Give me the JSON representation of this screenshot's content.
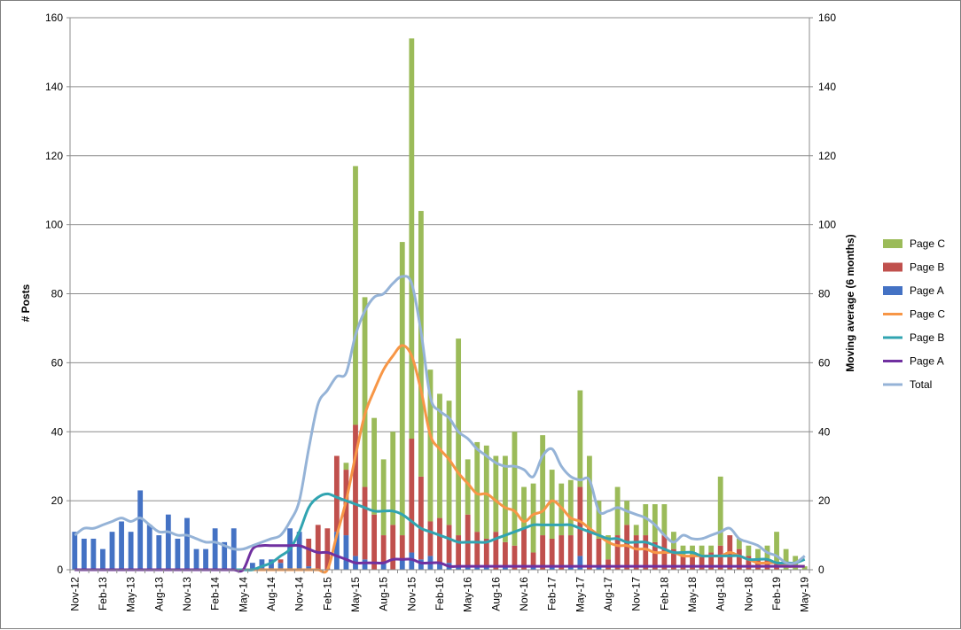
{
  "chart_data": {
    "type": "bar",
    "y_left_label": "# Posts",
    "y_right_label": "Moving average (6 months)",
    "ylim": [
      0,
      160
    ],
    "y_ticks": [
      0,
      20,
      40,
      60,
      80,
      100,
      120,
      140,
      160
    ],
    "x_tick_labels": [
      "Nov-12",
      "Feb-13",
      "May-13",
      "Aug-13",
      "Nov-13",
      "Feb-14",
      "May-14",
      "Aug-14",
      "Nov-14",
      "Feb-15",
      "May-15",
      "Aug-15",
      "Nov-15",
      "Feb-16",
      "May-16",
      "Aug-16",
      "Nov-16",
      "Feb-17",
      "May-17",
      "Aug-17",
      "Nov-17",
      "Feb-18",
      "May-18",
      "Aug-18",
      "Nov-18",
      "Feb-19",
      "May-19"
    ],
    "months": [
      "Nov-12",
      "Dec-12",
      "Jan-13",
      "Feb-13",
      "Mar-13",
      "Apr-13",
      "May-13",
      "Jun-13",
      "Jul-13",
      "Aug-13",
      "Sep-13",
      "Oct-13",
      "Nov-13",
      "Dec-13",
      "Jan-14",
      "Feb-14",
      "Mar-14",
      "Apr-14",
      "May-14",
      "Jun-14",
      "Jul-14",
      "Aug-14",
      "Sep-14",
      "Oct-14",
      "Nov-14",
      "Dec-14",
      "Jan-15",
      "Feb-15",
      "Mar-15",
      "Apr-15",
      "May-15",
      "Jun-15",
      "Jul-15",
      "Aug-15",
      "Sep-15",
      "Oct-15",
      "Nov-15",
      "Dec-15",
      "Jan-16",
      "Feb-16",
      "Mar-16",
      "Apr-16",
      "May-16",
      "Jun-16",
      "Jul-16",
      "Aug-16",
      "Sep-16",
      "Oct-16",
      "Nov-16",
      "Dec-16",
      "Jan-17",
      "Feb-17",
      "Mar-17",
      "Apr-17",
      "May-17",
      "Jun-17",
      "Jul-17",
      "Aug-17",
      "Sep-17",
      "Oct-17",
      "Nov-17",
      "Dec-17",
      "Jan-18",
      "Feb-18",
      "Mar-18",
      "Apr-18",
      "May-18",
      "Jun-18",
      "Jul-18",
      "Aug-18",
      "Sep-18",
      "Oct-18",
      "Nov-18",
      "Dec-18",
      "Jan-19",
      "Feb-19",
      "Mar-19",
      "Apr-19",
      "May-19"
    ],
    "bar_series": [
      {
        "name": "Page A",
        "color": "#4472c4",
        "values": [
          11,
          9,
          9,
          6,
          11,
          14,
          11,
          23,
          13,
          10,
          16,
          9,
          15,
          6,
          6,
          12,
          8,
          12,
          0,
          2,
          3,
          3,
          2,
          12,
          11,
          1,
          0,
          0,
          11,
          10,
          4,
          3,
          0,
          2,
          0,
          3,
          5,
          3,
          4,
          2,
          2,
          1,
          1,
          1,
          1,
          0,
          1,
          0,
          0,
          1,
          0,
          1,
          0,
          1,
          4,
          0,
          1,
          0,
          0,
          0,
          0,
          0,
          0,
          0,
          0,
          0,
          0,
          0,
          0,
          0,
          0,
          0,
          0,
          0,
          0,
          0,
          0,
          0,
          0
        ]
      },
      {
        "name": "Page B",
        "color": "#c0504d",
        "values": [
          0,
          0,
          0,
          0,
          0,
          0,
          0,
          0,
          0,
          0,
          0,
          0,
          0,
          0,
          0,
          0,
          0,
          0,
          0,
          0,
          0,
          0,
          1,
          0,
          0,
          8,
          13,
          12,
          22,
          19,
          38,
          21,
          16,
          8,
          13,
          7,
          33,
          24,
          10,
          13,
          11,
          9,
          15,
          10,
          8,
          11,
          7,
          7,
          12,
          4,
          10,
          8,
          10,
          9,
          20,
          12,
          8,
          3,
          10,
          13,
          10,
          10,
          8,
          10,
          6,
          4,
          4,
          4,
          5,
          7,
          10,
          6,
          4,
          3,
          3,
          2,
          0,
          0,
          0
        ]
      },
      {
        "name": "Page C",
        "color": "#9bbb59",
        "values": [
          0,
          0,
          0,
          0,
          0,
          0,
          0,
          0,
          0,
          0,
          0,
          0,
          0,
          0,
          0,
          0,
          0,
          0,
          0,
          0,
          0,
          0,
          0,
          0,
          0,
          0,
          0,
          0,
          0,
          2,
          75,
          55,
          28,
          22,
          27,
          85,
          116,
          77,
          44,
          36,
          36,
          57,
          16,
          26,
          27,
          22,
          25,
          33,
          12,
          20,
          29,
          20,
          15,
          16,
          28,
          21,
          11,
          7,
          14,
          7,
          3,
          9,
          11,
          9,
          5,
          3,
          3,
          3,
          2,
          20,
          0,
          3,
          3,
          3,
          4,
          9,
          6,
          4,
          1
        ]
      }
    ],
    "line_series": [
      {
        "name": "Page C",
        "color": "#f79646",
        "values": [
          0,
          0,
          0,
          0,
          0,
          0,
          0,
          0,
          0,
          0,
          0,
          0,
          0,
          0,
          0,
          0,
          0,
          0,
          0,
          0,
          0,
          0,
          0,
          0,
          0,
          0,
          0,
          0,
          10,
          20,
          33,
          45,
          52,
          58,
          62,
          65,
          62,
          52,
          39,
          35,
          32,
          28,
          25,
          22,
          22,
          20,
          18,
          17,
          14,
          16,
          17,
          20,
          18,
          15,
          14,
          12,
          10,
          8,
          7,
          7,
          6,
          6,
          5,
          5,
          5,
          4,
          4,
          4,
          4,
          4,
          5,
          4,
          3,
          2,
          2,
          2,
          1,
          1,
          1
        ]
      },
      {
        "name": "Page B",
        "color": "#31a4b1",
        "values": [
          0,
          0,
          0,
          0,
          0,
          0,
          0,
          0,
          0,
          0,
          0,
          0,
          0,
          0,
          0,
          0,
          0,
          0,
          0,
          0,
          1,
          2,
          4,
          6,
          11,
          18,
          21,
          22,
          21,
          20,
          19,
          18,
          17,
          17,
          17,
          16,
          14,
          12,
          11,
          10,
          9,
          8,
          8,
          8,
          8,
          9,
          10,
          11,
          12,
          13,
          13,
          13,
          13,
          13,
          12,
          11,
          10,
          9,
          9,
          8,
          8,
          8,
          7,
          6,
          5,
          5,
          5,
          4,
          4,
          4,
          4,
          4,
          3,
          3,
          3,
          2,
          2,
          2,
          3
        ]
      },
      {
        "name": "Page A",
        "color": "#7030a0",
        "values": [
          0,
          0,
          0,
          0,
          0,
          0,
          0,
          0,
          0,
          0,
          0,
          0,
          0,
          0,
          0,
          0,
          0,
          0,
          0,
          6,
          7,
          7,
          7,
          7,
          7,
          6,
          5,
          5,
          4,
          3,
          2,
          2,
          2,
          2,
          3,
          3,
          3,
          2,
          2,
          2,
          1,
          1,
          1,
          1,
          1,
          1,
          1,
          1,
          1,
          1,
          1,
          1,
          1,
          1,
          1,
          1,
          1,
          1,
          1,
          1,
          1,
          1,
          1,
          1,
          1,
          1,
          1,
          1,
          1,
          1,
          1,
          1,
          1,
          1,
          1,
          1,
          1,
          1,
          1
        ]
      },
      {
        "name": "Total",
        "color": "#95b3d7",
        "values": [
          10,
          12,
          12,
          13,
          14,
          15,
          14,
          15,
          13,
          11,
          11,
          10,
          10,
          9,
          8,
          8,
          7,
          6,
          6,
          7,
          8,
          9,
          10,
          14,
          20,
          35,
          48,
          52,
          56,
          57,
          68,
          75,
          79,
          80,
          83,
          85,
          83,
          69,
          50,
          46,
          44,
          40,
          38,
          35,
          33,
          31,
          30,
          30,
          29,
          27,
          33,
          35,
          30,
          27,
          26,
          26,
          17,
          17,
          18,
          17,
          16,
          15,
          13,
          10,
          8,
          10,
          9,
          9,
          10,
          11,
          12,
          9,
          8,
          7,
          5,
          4,
          2,
          2,
          4
        ]
      }
    ],
    "legend": [
      "Page C",
      "Page B",
      "Page A",
      "Page C",
      "Page B",
      "Page A",
      "Total"
    ],
    "legend_position": "right",
    "grid": true
  }
}
